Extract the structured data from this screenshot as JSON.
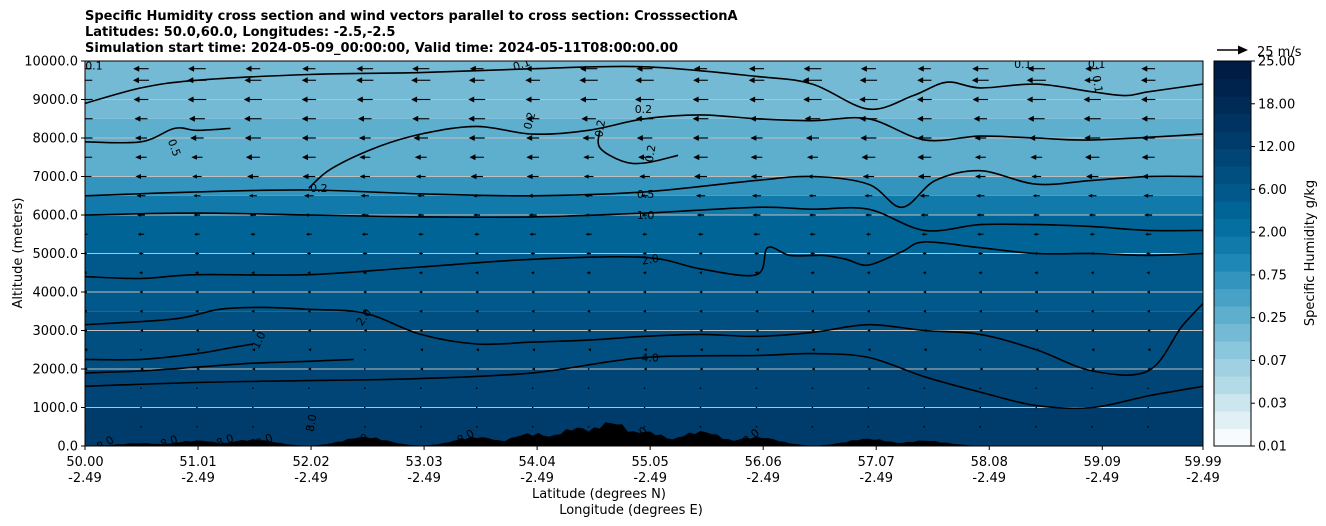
{
  "title": {
    "line1": "Specific Humidity cross section and wind vectors parallel to cross section: CrosssectionA",
    "line2": "Latitudes: 50.0,60.0, Longitudes: -2.5,-2.5",
    "line3": "Simulation start time: 2024-05-09_00:00:00, Valid time: 2024-05-11T08:00:00.00"
  },
  "colors": {
    "frame": "#000000",
    "grid": "#bfbfbf",
    "terrain": "#000000"
  },
  "chart_data": {
    "type": "heatmap",
    "subtype": "filled contour cross-section with wind vectors and contour lines",
    "xlabel_1": "Latitude (degrees N)",
    "xlabel_2": "Longitude (degrees E)",
    "ylabel": "Altitude (meters)",
    "ylim": [
      0,
      10000
    ],
    "xlim": [
      50.0,
      59.99
    ],
    "y_ticks": [
      0,
      1000,
      2000,
      3000,
      4000,
      5000,
      6000,
      7000,
      8000,
      9000,
      10000
    ],
    "y_tick_labels": [
      "0.0",
      "1000.0",
      "2000.0",
      "3000.0",
      "4000.0",
      "5000.0",
      "6000.0",
      "7000.0",
      "8000.0",
      "9000.0",
      "10000.0"
    ],
    "x_ticks": [
      50.0,
      51.01,
      52.02,
      53.03,
      54.04,
      55.05,
      56.06,
      57.07,
      58.08,
      59.09,
      59.99
    ],
    "x_tick_lat_labels": [
      "50.00",
      "51.01",
      "52.02",
      "53.03",
      "54.04",
      "55.05",
      "56.06",
      "57.07",
      "58.08",
      "59.09",
      "59.99"
    ],
    "x_tick_lon_labels": [
      "-2.49",
      "-2.49",
      "-2.49",
      "-2.49",
      "-2.49",
      "-2.49",
      "-2.49",
      "-2.49",
      "-2.49",
      "-2.49",
      "-2.49"
    ],
    "horizontal_grid": true,
    "colorbar": {
      "label": "Specific Humidity g/kg",
      "levels": [
        0.01,
        0.02,
        0.03,
        0.05,
        0.07,
        0.1,
        0.15,
        0.25,
        0.35,
        0.5,
        0.75,
        1.0,
        1.5,
        2.0,
        3.0,
        4.0,
        6.0,
        8.0,
        12.0,
        15.0,
        18.0,
        22.0,
        25.0
      ],
      "tick_labels": [
        "0.01",
        "0.03",
        "0.07",
        "0.25",
        "0.75",
        "2.00",
        "6.00",
        "12.00",
        "18.00",
        "25.00"
      ],
      "band_colors": [
        "#f7fbfd",
        "#e1f0f4",
        "#cbe6ee",
        "#b3dbe7",
        "#a0d1e2",
        "#8ac6dc",
        "#74bad5",
        "#5eaece",
        "#48a1c6",
        "#3394be",
        "#1f87b5",
        "#117aab",
        "#066fa2",
        "#006496",
        "#00598a",
        "#004f80",
        "#004575",
        "#003c6b",
        "#003361",
        "#002b57",
        "#00234d",
        "#001c45"
      ]
    },
    "humidity_layers_by_altitude_m": [
      {
        "from": 0,
        "to": 1000,
        "q_gkg": 8.0
      },
      {
        "from": 1000,
        "to": 2000,
        "q_gkg": 6.0
      },
      {
        "from": 2000,
        "to": 3500,
        "q_gkg": 4.0
      },
      {
        "from": 3500,
        "to": 5000,
        "q_gkg": 3.0
      },
      {
        "from": 5000,
        "to": 6000,
        "q_gkg": 2.0
      },
      {
        "from": 6000,
        "to": 6500,
        "q_gkg": 1.0
      },
      {
        "from": 6500,
        "to": 7000,
        "q_gkg": 0.5
      },
      {
        "from": 7000,
        "to": 8500,
        "q_gkg": 0.25
      },
      {
        "from": 8500,
        "to": 10000,
        "q_gkg": 0.15
      }
    ],
    "contour_levels": [
      0.1,
      0.2,
      0.5,
      1.0,
      2.0,
      4.0,
      8.0
    ],
    "contour_lines": [
      {
        "level": 4.0,
        "points": [
          [
            50.0,
            1550
          ],
          [
            51.0,
            1650
          ],
          [
            52.0,
            1700
          ],
          [
            53.0,
            1750
          ],
          [
            54.0,
            1900
          ],
          [
            55.0,
            2300
          ],
          [
            56.0,
            2350
          ],
          [
            56.5,
            2400
          ],
          [
            57.0,
            2300
          ],
          [
            57.5,
            1800
          ],
          [
            58.0,
            1400
          ],
          [
            58.5,
            1050
          ],
          [
            59.0,
            1000
          ],
          [
            59.5,
            1300
          ],
          [
            59.99,
            1550
          ]
        ]
      },
      {
        "level": 4.0,
        "points": [
          [
            50.0,
            1900
          ],
          [
            50.5,
            1950
          ],
          [
            51.0,
            2050
          ],
          [
            51.5,
            2150
          ],
          [
            52.0,
            2200
          ],
          [
            52.4,
            2250
          ]
        ]
      },
      {
        "level": 4.0,
        "points": [
          [
            50.0,
            2250
          ],
          [
            50.5,
            2250
          ],
          [
            51.0,
            2400
          ],
          [
            51.3,
            2550
          ],
          [
            51.5,
            2650
          ]
        ]
      },
      {
        "level": 2.0,
        "points": [
          [
            50.0,
            3150
          ],
          [
            50.8,
            3300
          ],
          [
            51.2,
            3550
          ],
          [
            51.6,
            3600
          ],
          [
            52.0,
            3550
          ],
          [
            52.5,
            3450
          ],
          [
            53.0,
            2900
          ],
          [
            53.5,
            2650
          ],
          [
            54.0,
            2700
          ],
          [
            54.5,
            2750
          ],
          [
            55.0,
            2850
          ],
          [
            55.5,
            2900
          ],
          [
            56.0,
            2850
          ],
          [
            56.5,
            2950
          ],
          [
            57.0,
            3150
          ],
          [
            57.5,
            3000
          ],
          [
            58.0,
            2900
          ],
          [
            58.5,
            2500
          ],
          [
            59.0,
            1950
          ],
          [
            59.5,
            1950
          ],
          [
            59.8,
            3100
          ],
          [
            59.99,
            3700
          ]
        ]
      },
      {
        "level": 2.0,
        "points": [
          [
            50.0,
            4400
          ],
          [
            50.5,
            4350
          ],
          [
            51.0,
            4450
          ],
          [
            52.0,
            4450
          ],
          [
            53.0,
            4650
          ],
          [
            54.0,
            4850
          ],
          [
            55.0,
            4900
          ],
          [
            55.5,
            4600
          ],
          [
            56.0,
            4450
          ],
          [
            56.1,
            5150
          ],
          [
            56.3,
            4950
          ],
          [
            56.6,
            4950
          ],
          [
            56.8,
            4850
          ],
          [
            57.0,
            4700
          ],
          [
            57.3,
            5050
          ],
          [
            57.5,
            5300
          ],
          [
            58.0,
            5150
          ],
          [
            58.5,
            5000
          ],
          [
            59.0,
            5000
          ],
          [
            59.5,
            4950
          ],
          [
            59.99,
            5000
          ]
        ]
      },
      {
        "level": 1.0,
        "points": [
          [
            50.0,
            6000
          ],
          [
            51.0,
            6050
          ],
          [
            52.0,
            6000
          ],
          [
            53.0,
            5950
          ],
          [
            54.0,
            5950
          ],
          [
            55.0,
            6050
          ],
          [
            56.0,
            6200
          ],
          [
            56.5,
            6150
          ],
          [
            57.0,
            6150
          ],
          [
            57.5,
            5600
          ],
          [
            58.0,
            5750
          ],
          [
            58.5,
            5750
          ],
          [
            59.0,
            5700
          ],
          [
            59.5,
            5600
          ],
          [
            59.99,
            5600
          ]
        ]
      },
      {
        "level": 0.5,
        "points": [
          [
            50.0,
            6500
          ],
          [
            51.0,
            6600
          ],
          [
            52.0,
            6650
          ],
          [
            53.0,
            6550
          ],
          [
            54.0,
            6500
          ],
          [
            55.0,
            6600
          ],
          [
            56.0,
            6900
          ],
          [
            56.5,
            7000
          ],
          [
            57.0,
            6800
          ],
          [
            57.3,
            6200
          ],
          [
            57.6,
            6900
          ],
          [
            58.0,
            7150
          ],
          [
            58.5,
            6800
          ],
          [
            59.0,
            6900
          ],
          [
            59.5,
            7000
          ],
          [
            59.99,
            7000
          ]
        ]
      },
      {
        "level": 0.5,
        "points": [
          [
            50.0,
            7900
          ],
          [
            50.5,
            7900
          ],
          [
            50.8,
            8250
          ],
          [
            51.0,
            8200
          ],
          [
            51.3,
            8250
          ]
        ]
      },
      {
        "level": 0.2,
        "points": [
          [
            52.0,
            6700
          ],
          [
            52.2,
            7200
          ],
          [
            52.6,
            7750
          ],
          [
            53.0,
            8100
          ],
          [
            53.5,
            8300
          ],
          [
            54.0,
            8100
          ],
          [
            54.5,
            8200
          ],
          [
            55.0,
            8500
          ],
          [
            55.5,
            8600
          ],
          [
            56.0,
            8500
          ],
          [
            56.5,
            8450
          ],
          [
            57.0,
            8500
          ],
          [
            57.5,
            7950
          ],
          [
            58.0,
            8050
          ],
          [
            58.5,
            8000
          ],
          [
            59.0,
            7950
          ],
          [
            59.99,
            8100
          ]
        ]
      },
      {
        "level": 0.2,
        "points": [
          [
            54.6,
            8200
          ],
          [
            54.6,
            7750
          ],
          [
            54.8,
            7400
          ],
          [
            55.0,
            7350
          ],
          [
            55.3,
            7550
          ]
        ]
      },
      {
        "level": 0.1,
        "points": [
          [
            50.0,
            8900
          ],
          [
            50.5,
            9300
          ],
          [
            51.0,
            9500
          ],
          [
            52.0,
            9650
          ],
          [
            53.0,
            9700
          ],
          [
            54.0,
            9800
          ],
          [
            55.0,
            9850
          ],
          [
            56.0,
            9600
          ],
          [
            56.5,
            9400
          ],
          [
            57.0,
            8750
          ],
          [
            57.4,
            9100
          ],
          [
            57.7,
            9450
          ],
          [
            58.0,
            9300
          ],
          [
            58.5,
            9400
          ],
          [
            59.0,
            9200
          ],
          [
            59.3,
            9100
          ],
          [
            59.5,
            9200
          ],
          [
            59.99,
            9400
          ]
        ]
      }
    ],
    "contour_label_texts": [
      {
        "text": "0.1",
        "x": 50.08,
        "y": 9880,
        "rot": 0
      },
      {
        "text": "0.5",
        "x": 50.8,
        "y": 7750,
        "rot": 70
      },
      {
        "text": "0.1",
        "x": 53.9,
        "y": 9920,
        "rot": -20
      },
      {
        "text": "0.2",
        "x": 53.97,
        "y": 8450,
        "rot": -75
      },
      {
        "text": "0.2",
        "x": 54.6,
        "y": 8250,
        "rot": -80
      },
      {
        "text": "0.2",
        "x": 54.99,
        "y": 8750,
        "rot": 0
      },
      {
        "text": "0.2",
        "x": 55.05,
        "y": 7600,
        "rot": -80
      },
      {
        "text": "0.2",
        "x": 52.09,
        "y": 6700,
        "rot": 0
      },
      {
        "text": "0.5",
        "x": 55.01,
        "y": 6550,
        "rot": 0
      },
      {
        "text": "1.0",
        "x": 55.01,
        "y": 6000,
        "rot": 0
      },
      {
        "text": "2.0",
        "x": 55.05,
        "y": 4850,
        "rot": -10
      },
      {
        "text": "2.0",
        "x": 52.49,
        "y": 3350,
        "rot": -55
      },
      {
        "text": "1.0",
        "x": 51.55,
        "y": 2750,
        "rot": -65
      },
      {
        "text": "4.0",
        "x": 55.05,
        "y": 2300,
        "rot": 0
      },
      {
        "text": "8.0",
        "x": 52.02,
        "y": 600,
        "rot": -80
      },
      {
        "text": "0.1",
        "x": 58.38,
        "y": 9920,
        "rot": 0
      },
      {
        "text": "0.1",
        "x": 59.04,
        "y": 9920,
        "rot": 0
      },
      {
        "text": "0.1",
        "x": 59.05,
        "y": 9400,
        "rot": 80
      },
      {
        "text": "8.0",
        "x": 50.18,
        "y": 80,
        "rot": -30
      },
      {
        "text": "8.0",
        "x": 50.75,
        "y": 120,
        "rot": -20
      },
      {
        "text": "8.0",
        "x": 51.25,
        "y": 150,
        "rot": -20
      },
      {
        "text": "8.0",
        "x": 51.6,
        "y": 150,
        "rot": -25
      },
      {
        "text": "8.0",
        "x": 52.45,
        "y": 150,
        "rot": -25
      },
      {
        "text": "8.0",
        "x": 53.4,
        "y": 250,
        "rot": -30
      },
      {
        "text": "8.0",
        "x": 54.95,
        "y": 300,
        "rot": -40
      },
      {
        "text": "8.0",
        "x": 55.95,
        "y": 250,
        "rot": -40
      }
    ],
    "wind_vectors": {
      "reference_label": "25 m/s",
      "reference_speed_ms": 25,
      "direction": "southward (towards lower latitudes) at upper levels",
      "speed_profile_ms": [
        {
          "alt": 500,
          "u": 0
        },
        {
          "alt": 1000,
          "u": 0
        },
        {
          "alt": 1500,
          "u": -0.5
        },
        {
          "alt": 2000,
          "u": -1
        },
        {
          "alt": 2500,
          "u": -1
        },
        {
          "alt": 3000,
          "u": -1.5
        },
        {
          "alt": 3500,
          "u": -2
        },
        {
          "alt": 4000,
          "u": -2
        },
        {
          "alt": 4500,
          "u": -2.5
        },
        {
          "alt": 5000,
          "u": -3
        },
        {
          "alt": 5500,
          "u": -4
        },
        {
          "alt": 6000,
          "u": -5
        },
        {
          "alt": 6500,
          "u": -6
        },
        {
          "alt": 7000,
          "u": -8
        },
        {
          "alt": 7500,
          "u": -9
        },
        {
          "alt": 8000,
          "u": -10
        },
        {
          "alt": 8500,
          "u": -11
        },
        {
          "alt": 9000,
          "u": -12
        },
        {
          "alt": 9500,
          "u": -12
        },
        {
          "alt": 9800,
          "u": -11
        }
      ]
    },
    "terrain_peaks": [
      {
        "lat": 50.5,
        "h": 80
      },
      {
        "lat": 51.0,
        "h": 150
      },
      {
        "lat": 51.5,
        "h": 180
      },
      {
        "lat": 52.5,
        "h": 250
      },
      {
        "lat": 53.5,
        "h": 250
      },
      {
        "lat": 54.0,
        "h": 350
      },
      {
        "lat": 54.4,
        "h": 500
      },
      {
        "lat": 54.7,
        "h": 650
      },
      {
        "lat": 55.0,
        "h": 400
      },
      {
        "lat": 55.5,
        "h": 400
      },
      {
        "lat": 56.0,
        "h": 250
      },
      {
        "lat": 57.0,
        "h": 200
      },
      {
        "lat": 57.5,
        "h": 150
      }
    ]
  }
}
